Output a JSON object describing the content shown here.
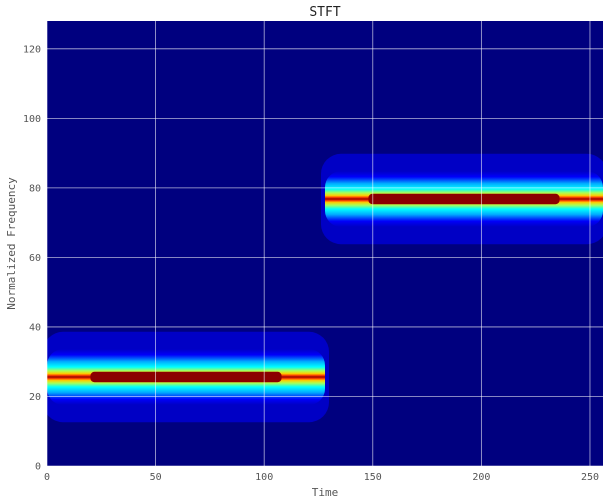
{
  "chart_data": {
    "type": "heatmap",
    "title": "STFT",
    "xlabel": "Time",
    "ylabel": "Normalized Frequency",
    "xlim": [
      0,
      256
    ],
    "ylim": [
      0,
      128
    ],
    "xticks": [
      0,
      50,
      100,
      150,
      200,
      250
    ],
    "yticks": [
      0,
      20,
      40,
      60,
      80,
      100,
      120
    ],
    "grid": true,
    "colormap": "jet",
    "background_color": "#00007f",
    "grid_color": "#ffffff",
    "bands": [
      {
        "t_start": 0,
        "t_end": 128,
        "frequency": 25.6,
        "peak_start": 20,
        "peak_end": 108
      },
      {
        "t_start": 128,
        "t_end": 256,
        "frequency": 76.8,
        "peak_start": 148,
        "peak_end": 236
      }
    ]
  }
}
